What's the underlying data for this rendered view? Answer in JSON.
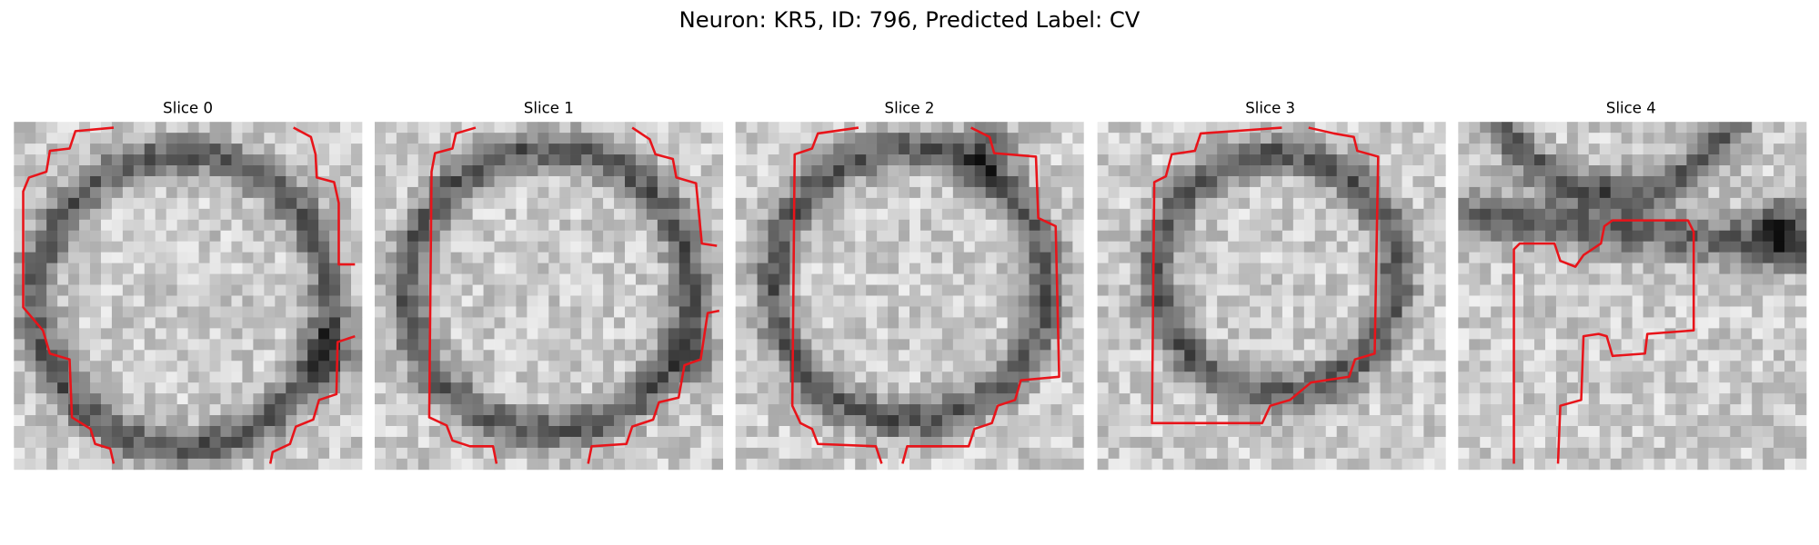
{
  "title": "Neuron: KR5, ID: 796, Predicted Label: CV",
  "panels": [
    {
      "title": "Slice 0"
    },
    {
      "title": "Slice 1"
    },
    {
      "title": "Slice 2"
    },
    {
      "title": "Slice 3"
    },
    {
      "title": "Slice 4"
    }
  ]
}
